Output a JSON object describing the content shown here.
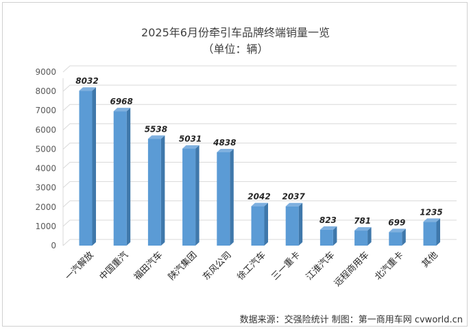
{
  "chart_data": {
    "type": "bar",
    "title": "2025年6月份牵引车品牌终端销量一览",
    "subtitle": "（单位：辆）",
    "categories": [
      "一汽解放",
      "中国重汽",
      "福田汽车",
      "陕汽集团",
      "东风公司",
      "徐工汽车",
      "三一重卡",
      "江淮汽车",
      "远程商用车",
      "北汽重卡",
      "其他"
    ],
    "values": [
      8032,
      6968,
      5538,
      5031,
      4838,
      2042,
      2037,
      823,
      781,
      699,
      1235
    ],
    "ylim": [
      0,
      9000
    ],
    "yticks": [
      0,
      1000,
      2000,
      3000,
      4000,
      5000,
      6000,
      7000,
      8000,
      9000
    ],
    "xlabel": "",
    "ylabel": "",
    "grid": true,
    "bar_color": "#5b9bd5",
    "bar_side_color": "#3f78ab",
    "bar_top_color": "#7fb0df"
  },
  "footer": "数据来源：交强险统计   制图：第一商用车网 cvworld.cn"
}
